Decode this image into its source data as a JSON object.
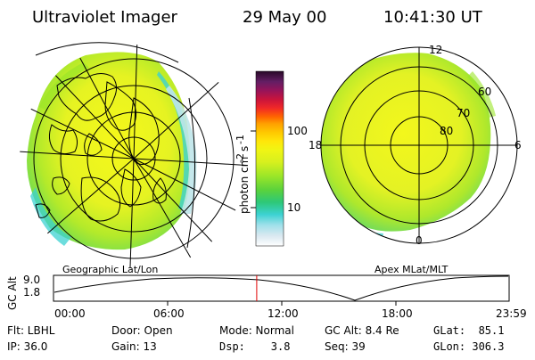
{
  "header": {
    "title": "Ultraviolet Imager",
    "date": "29 May 00",
    "time": "10:41:30 UT"
  },
  "panels": {
    "left_label": "Geographic Lat/Lon",
    "right_label": "Apex MLat/MLT"
  },
  "colorbar": {
    "label": "photon cm-2s-1",
    "label_main": "photon cm",
    "label_exp1": "-2",
    "label_mid": "s",
    "label_exp2": "-1",
    "ticks": [
      "100",
      "10"
    ],
    "colors": [
      "#ffffff",
      "#d8e8f0",
      "#9fe0ea",
      "#3cd2d2",
      "#2dc878",
      "#5ad23c",
      "#9be628",
      "#d7f01e",
      "#f0f514",
      "#ffe60a",
      "#ffc800",
      "#ffa000",
      "#ff6400",
      "#f02828",
      "#c8143c",
      "#96145a",
      "#641e64",
      "#280a28"
    ]
  },
  "polar": {
    "mlt_labels": [
      "12",
      "18",
      "6",
      "0"
    ],
    "mlat_labels": [
      "60",
      "70",
      "80"
    ]
  },
  "timeline": {
    "ylabel": "GC Alt",
    "y_max_label": "9.0",
    "y_min_label": "1.8",
    "x_labels": [
      "00:00",
      "06:00",
      "12:00",
      "18:00",
      "23:59"
    ],
    "current_time_fraction": 0.446,
    "marker_color": "#e00000"
  },
  "status": {
    "filter": "Flt: LBHL",
    "ip": "IP: 36.0",
    "door": "Door: Open",
    "gain": "Gain: 13",
    "mode": "Mode: Normal",
    "dsp": "Dsp:    3.8",
    "gc_alt": "GC Alt: 8.4 Re",
    "seq": "Seq: 39",
    "glat": "GLat:  85.1",
    "glon": "GLon: 306.3"
  },
  "accent_colors": {
    "aurora_base": "#d7f01e",
    "aurora_edge": "#3cd2d2",
    "aurora_core": "#f0f514"
  }
}
